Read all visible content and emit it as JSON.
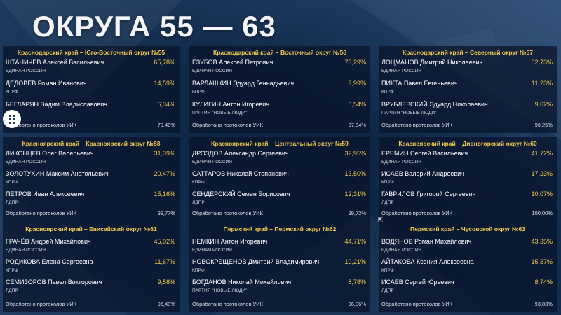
{
  "title": "ОКРУГА 55 — 63",
  "districts": [
    {
      "header": "Краснодарский край – Юго-Восточный округ №55",
      "candidates": [
        {
          "name": "ШТАНИЧЕВ Алексей Васильевич",
          "party": "ЕДИНАЯ РОССИЯ",
          "pct": "65,78%"
        },
        {
          "name": "ДЕДОВЕВ Роман Иванович",
          "party": "КПРФ",
          "pct": "14,59%"
        },
        {
          "name": "БЕГЛАРЯН Вадим Владиславович",
          "party": "ЛДПР",
          "pct": "6,34%"
        }
      ],
      "processed_label": "Обработано протоколов УИК",
      "processed_value": "79,40%"
    },
    {
      "header": "Краснодарский край – Восточный округ №56",
      "candidates": [
        {
          "name": "ЕЗУБОВ Алексей Петрович",
          "party": "ЕДИНАЯ РОССИЯ",
          "pct": "73,29%"
        },
        {
          "name": "ВАРЛАШКИН Эдуард Геннадьевич",
          "party": "КПРФ",
          "pct": "9,99%"
        },
        {
          "name": "КУЛИГИН Антон Игоревич",
          "party": "ПАРТИЯ \"НОВЫЕ ЛЮДИ\"",
          "pct": "6,54%"
        }
      ],
      "processed_label": "Обработано протоколов УИК",
      "processed_value": "97,84%"
    },
    {
      "header": "Краснодарский край – Северный округ №57",
      "candidates": [
        {
          "name": "ЛОЦМАНОВ Дмитрий Николаевич",
          "party": "ЕДИНАЯ РОССИЯ",
          "pct": "62,73%"
        },
        {
          "name": "ПИКТА Павел Евгеньевич",
          "party": "КПРФ",
          "pct": "11,23%"
        },
        {
          "name": "ВРУБЛЕВСКИЙ Эдуард Николаевич",
          "party": "ПАРТИЯ \"НОВЫЕ ЛЮДИ\"",
          "pct": "9,62%"
        }
      ],
      "processed_label": "Обработано протоколов УИК",
      "processed_value": "96,25%"
    },
    {
      "header": "Красноярский край – Красноярский округ №58",
      "candidates": [
        {
          "name": "ЛИКОНЦЕВ Олег Валерьевич",
          "party": "ЕДИНАЯ РОССИЯ",
          "pct": "31,39%"
        },
        {
          "name": "ЗОЛОТУХИН Максим Анатольевич",
          "party": "КПРФ",
          "pct": "20,47%"
        },
        {
          "name": "ПЕТРОВ Иван Алексеевич",
          "party": "ЛДПР",
          "pct": "15,16%"
        }
      ],
      "processed_label": "Обработано протоколов УИК",
      "processed_value": "99,77%"
    },
    {
      "header": "Красноярский край – Центральный округ №59",
      "candidates": [
        {
          "name": "ДРОЗДОВ Александр Сергеевич",
          "party": "ЕДИНАЯ РОССИЯ",
          "pct": "32,95%"
        },
        {
          "name": "САТТАРОВ Николай Степанович",
          "party": "КПРФ",
          "pct": "13,50%"
        },
        {
          "name": "СЕНДЕРСКИЙ Семен Борисович",
          "party": "ЛДПР",
          "pct": "12,31%"
        }
      ],
      "processed_label": "Обработано протоколов УИК",
      "processed_value": "99,72%"
    },
    {
      "header": "Красноярский край – Дивногорский округ №60",
      "candidates": [
        {
          "name": "ЕРЕМИН Сергей Васильевич",
          "party": "ЕДИНАЯ РОССИЯ",
          "pct": "41,72%"
        },
        {
          "name": "ИСАЕВ Валерий Андреевич",
          "party": "КПРФ",
          "pct": "17,23%"
        },
        {
          "name": "ГАВРИЛОВ Григорий Сергеевич",
          "party": "ЛДПР",
          "pct": "10,07%"
        }
      ],
      "processed_label": "Обработано протоколов УИК",
      "processed_value": "100,00%"
    },
    {
      "header": "Красноярский край – Енисейский округ №61",
      "candidates": [
        {
          "name": "ГРАЧЁВ Андрей Михайлович",
          "party": "ЕДИНАЯ РОССИЯ",
          "pct": "45,02%"
        },
        {
          "name": "РОДИКОВА Елена Сергеевна",
          "party": "КПРФ",
          "pct": "11,67%"
        },
        {
          "name": "СЕМИЗОРОВ Павел Викторович",
          "party": "ЛДПР",
          "pct": "9,58%"
        }
      ],
      "processed_label": "Обработано протоколов УИК",
      "processed_value": "95,40%"
    },
    {
      "header": "Пермский край – Пермский округ №62",
      "candidates": [
        {
          "name": "НЕМКИН Антон Игоревич",
          "party": "ЕДИНАЯ РОССИЯ",
          "pct": "44,71%"
        },
        {
          "name": "НОВОКРЕЩЕНОВ Дмитрий Владимирович",
          "party": "КПРФ",
          "pct": "10,21%"
        },
        {
          "name": "БОГДАНОВ Николай Михайлович",
          "party": "ПАРТИЯ \"НОВЫЕ ЛЮДИ\"",
          "pct": "8,78%"
        }
      ],
      "processed_label": "Обработано протоколов УИК",
      "processed_value": "96,36%"
    },
    {
      "header": "Пермский край – Чусовской округ №63",
      "candidates": [
        {
          "name": "ВОДЯНОВ Роман Михайлович",
          "party": "ЕДИНАЯ РОССИЯ",
          "pct": "43,35%"
        },
        {
          "name": "АЙТАКОВА Ксения Алексеевна",
          "party": "КПРФ",
          "pct": "15,37%"
        },
        {
          "name": "ИСАЕВ Сергей Юрьевич",
          "party": "ЛДПР",
          "pct": "8,74%"
        }
      ],
      "processed_label": "Обработано протоколов УИК",
      "processed_value": "93,83%"
    }
  ],
  "colors": {
    "accent": "#f2c94c",
    "background": "#0f2646"
  },
  "icons": {
    "app_icon": "grid-dots-icon",
    "cursor": "mouse-cursor-icon"
  }
}
